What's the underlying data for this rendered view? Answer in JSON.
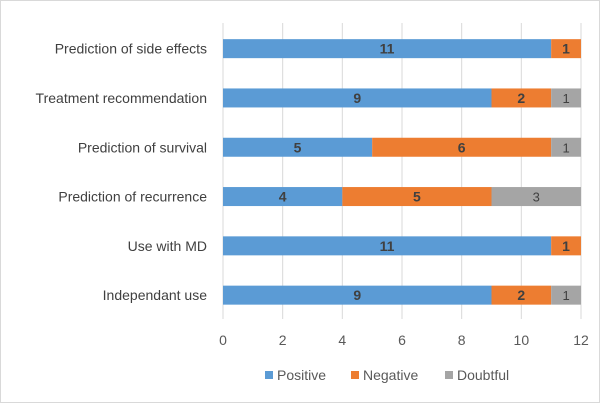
{
  "chart_data": {
    "type": "bar",
    "orientation": "horizontal",
    "stacked": true,
    "title": "",
    "xlabel": "",
    "ylabel": "",
    "categories": [
      "Prediction of side effects",
      "Treatment recommendation",
      "Prediction of survival",
      "Prediction of recurrence",
      "Use with MD",
      "Independant use"
    ],
    "series": [
      {
        "name": "Positive",
        "color": "#5b9bd5",
        "values": [
          11,
          9,
          5,
          4,
          11,
          9
        ]
      },
      {
        "name": "Negative",
        "color": "#ed7d31",
        "values": [
          1,
          2,
          6,
          5,
          1,
          2
        ]
      },
      {
        "name": "Doubtful",
        "color": "#a5a5a5",
        "values": [
          0,
          1,
          1,
          3,
          0,
          1
        ]
      }
    ],
    "xlim": [
      0,
      12
    ],
    "xticks": [
      0,
      2,
      4,
      6,
      8,
      10,
      12
    ],
    "grid": true,
    "legend": "bottom"
  }
}
